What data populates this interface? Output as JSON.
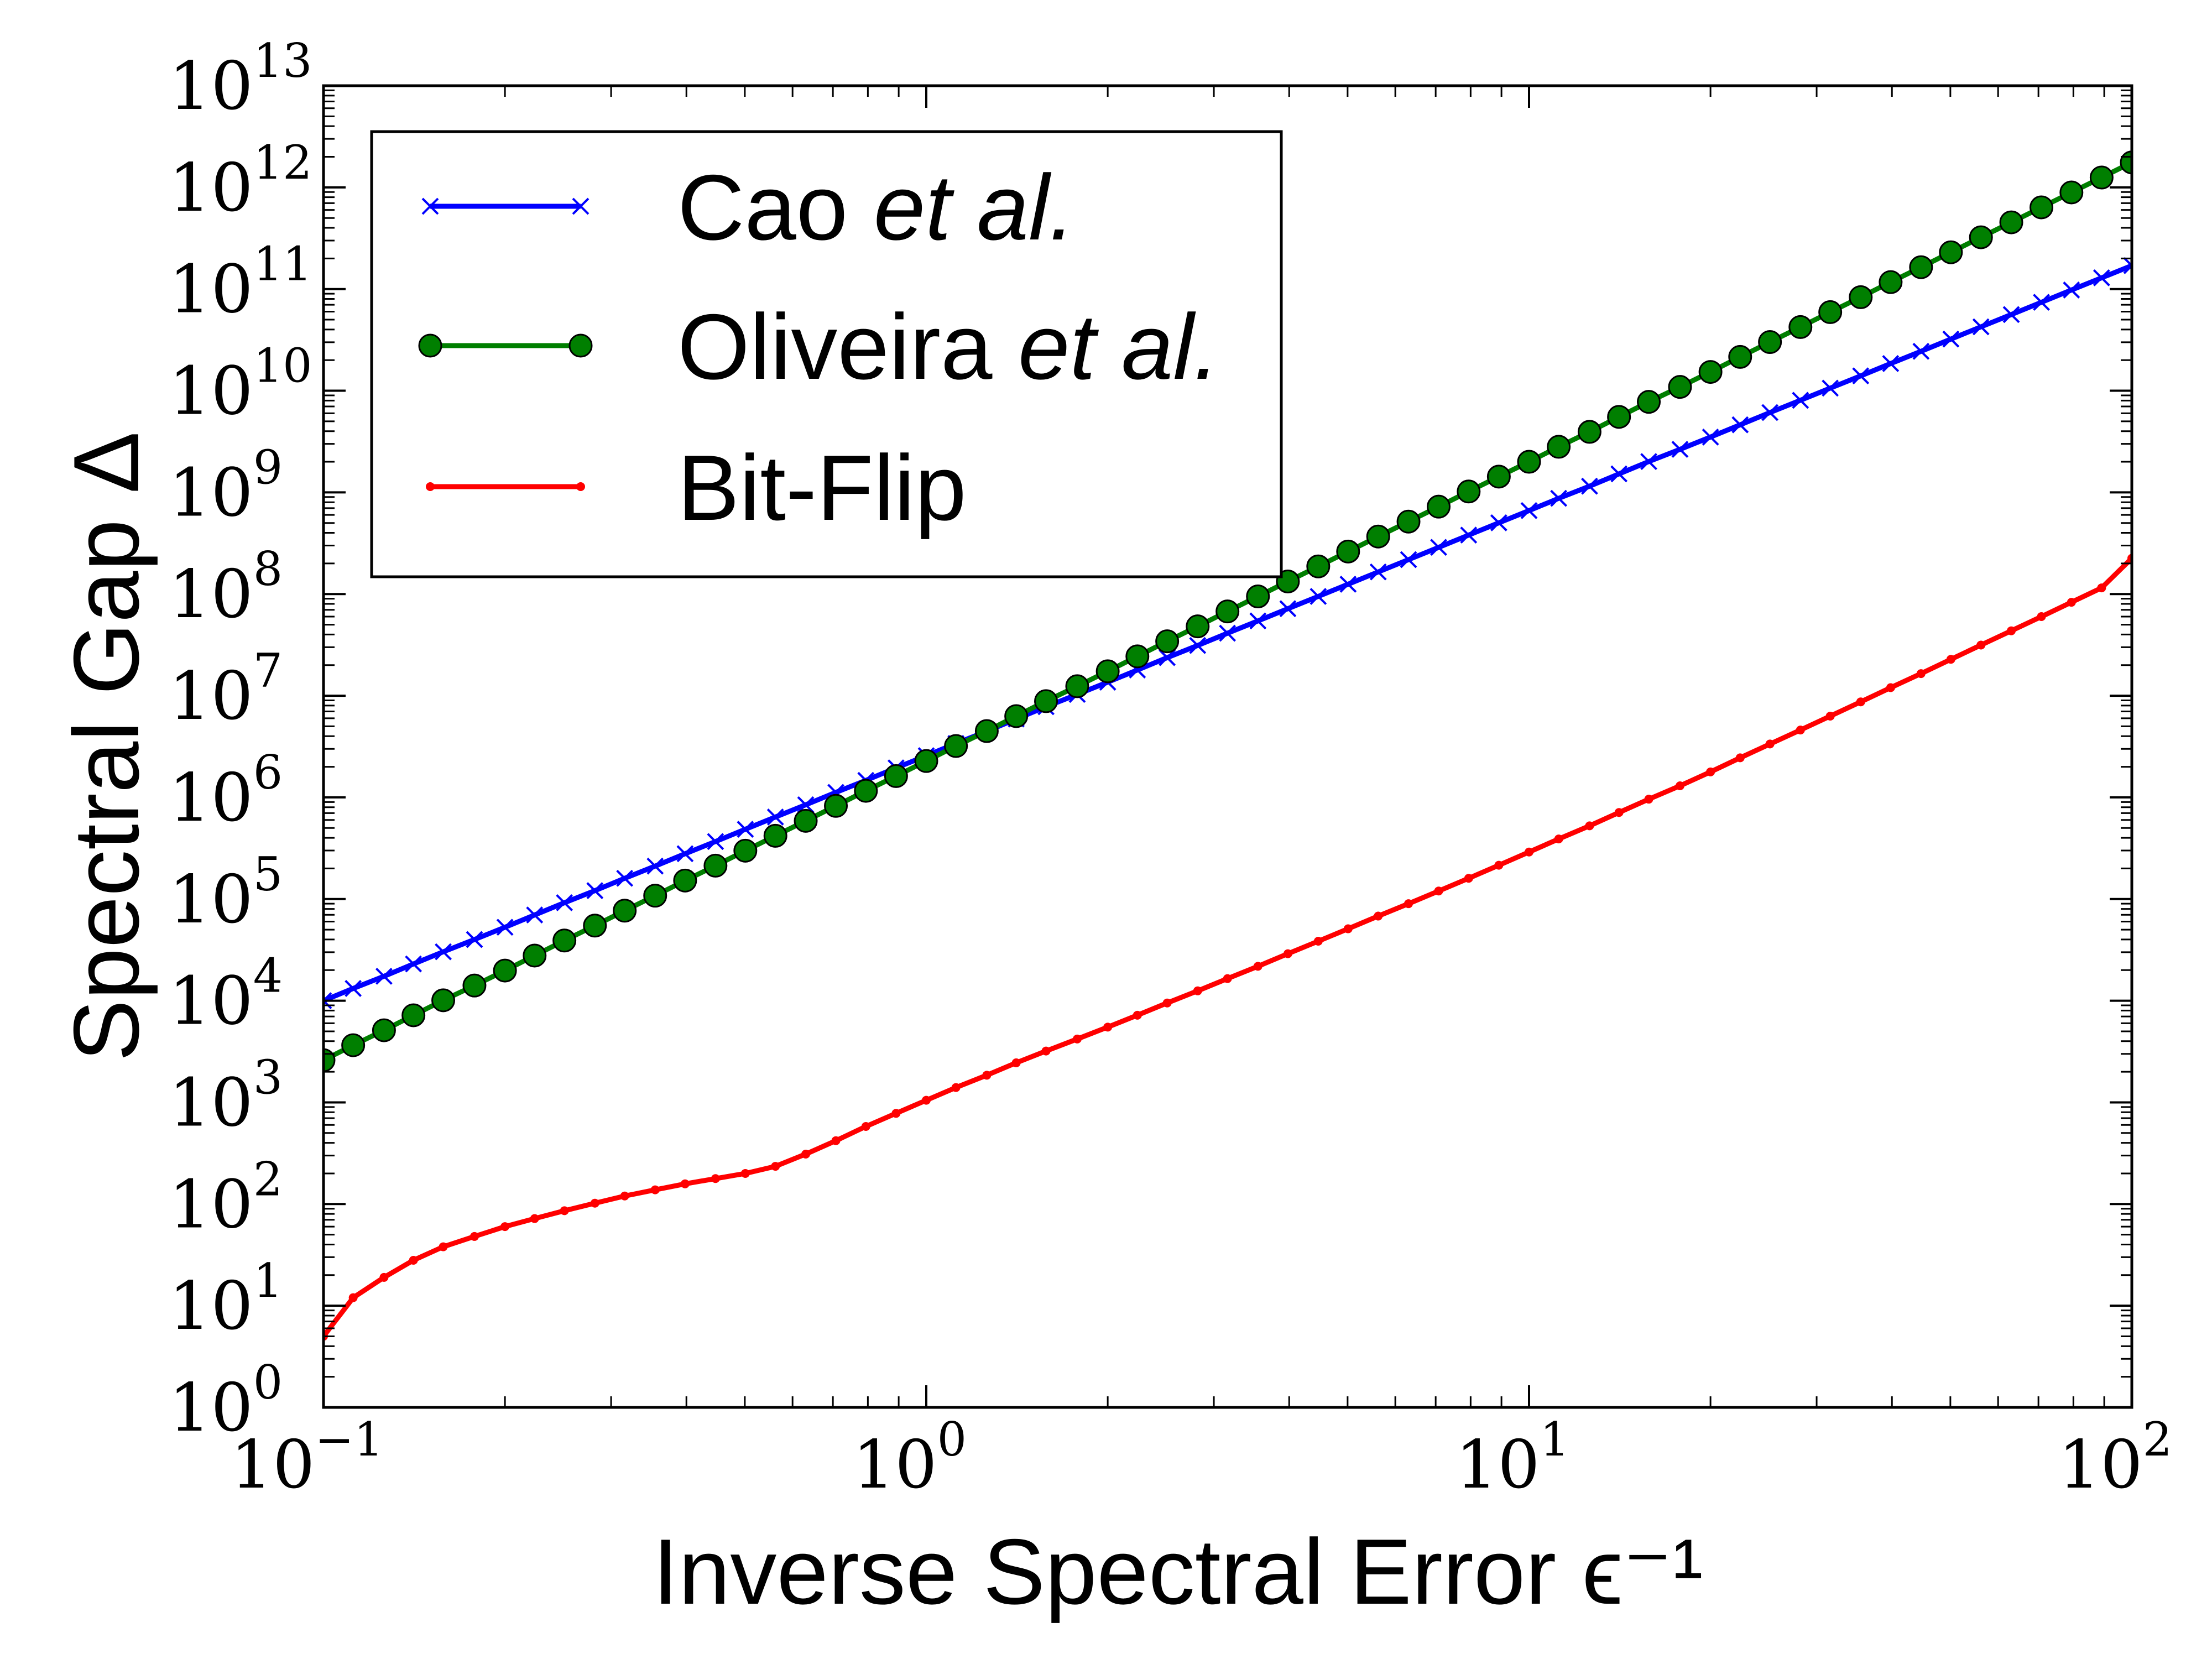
{
  "chart_data": {
    "type": "line",
    "xlabel": "Inverse Spectral Error ϵ⁻¹",
    "ylabel": "Spectral Gap Δ",
    "x_scale": "log",
    "y_scale": "log",
    "xlim": [
      0.1,
      100
    ],
    "ylim": [
      1,
      10000000000000
    ],
    "grid": false,
    "legend_position": "top-left",
    "x_ticks": [
      {
        "base": "10",
        "exp": "−1",
        "value": 0.1
      },
      {
        "base": "10",
        "exp": "0",
        "value": 1
      },
      {
        "base": "10",
        "exp": "1",
        "value": 10
      },
      {
        "base": "10",
        "exp": "2",
        "value": 100
      }
    ],
    "y_ticks": [
      {
        "base": "10",
        "exp": "0",
        "value": 1
      },
      {
        "base": "10",
        "exp": "1",
        "value": 10
      },
      {
        "base": "10",
        "exp": "2",
        "value": 100
      },
      {
        "base": "10",
        "exp": "3",
        "value": 1000
      },
      {
        "base": "10",
        "exp": "4",
        "value": 10000
      },
      {
        "base": "10",
        "exp": "5",
        "value": 100000
      },
      {
        "base": "10",
        "exp": "6",
        "value": 1000000
      },
      {
        "base": "10",
        "exp": "7",
        "value": 10000000
      },
      {
        "base": "10",
        "exp": "8",
        "value": 100000000
      },
      {
        "base": "10",
        "exp": "9",
        "value": 1000000000
      },
      {
        "base": "10",
        "exp": "10",
        "value": 10000000000
      },
      {
        "base": "10",
        "exp": "11",
        "value": 100000000000
      },
      {
        "base": "10",
        "exp": "12",
        "value": 1000000000000
      },
      {
        "base": "10",
        "exp": "13",
        "value": 10000000000000
      }
    ],
    "series": [
      {
        "name": "Cao et al.",
        "legend_plain": "Cao ",
        "legend_italic": "et al.",
        "color": "#0000ff",
        "marker": "x",
        "x": [
          0.1,
          0.112,
          0.126,
          0.141,
          0.158,
          0.178,
          0.2,
          0.224,
          0.251,
          0.282,
          0.316,
          0.355,
          0.398,
          0.447,
          0.501,
          0.562,
          0.631,
          0.708,
          0.794,
          0.891,
          1,
          1.12,
          1.26,
          1.41,
          1.58,
          1.78,
          2,
          2.24,
          2.51,
          2.82,
          3.16,
          3.55,
          3.98,
          4.47,
          5.01,
          5.62,
          6.31,
          7.08,
          7.94,
          8.91,
          10,
          11.2,
          12.6,
          14.1,
          15.8,
          17.8,
          20,
          22.4,
          25.1,
          28.2,
          31.6,
          35.5,
          39.8,
          44.7,
          50.1,
          56.2,
          63.1,
          70.8,
          79.4,
          89.1,
          100
        ],
        "y": [
          10000,
          13200,
          17400,
          23000,
          30300,
          40000,
          52800,
          69700,
          92000,
          121000,
          160000,
          211000,
          279000,
          368000,
          486000,
          641000,
          846000,
          1120000,
          1470000,
          1950000,
          2570000,
          3390000,
          4470000,
          5900000,
          7790000,
          10300000,
          13600000,
          17900000,
          23700000,
          31200000,
          41200000,
          54400000,
          71800000,
          94800000,
          125000000,
          165000000,
          218000000,
          288000000,
          380000000,
          502000000,
          662000000,
          874000000,
          1150000000,
          1520000000,
          2010000000,
          2650000000,
          3500000000,
          4620000000,
          6100000000,
          8050000000,
          10600000000,
          14000000000,
          18500000000,
          24400000000,
          32200000000,
          42500000000,
          56100000000,
          74100000000,
          97800000000,
          129000000000,
          170000000000
        ]
      },
      {
        "name": "Oliveira et al.",
        "legend_plain": "Oliveira ",
        "legend_italic": "et al.",
        "color": "#007f00",
        "marker": "o",
        "x": [
          0.1,
          0.112,
          0.126,
          0.141,
          0.158,
          0.178,
          0.2,
          0.224,
          0.251,
          0.282,
          0.316,
          0.355,
          0.398,
          0.447,
          0.501,
          0.562,
          0.631,
          0.708,
          0.794,
          0.891,
          1,
          1.12,
          1.26,
          1.41,
          1.58,
          1.78,
          2,
          2.24,
          2.51,
          2.82,
          3.16,
          3.55,
          3.98,
          4.47,
          5.01,
          5.62,
          6.31,
          7.08,
          7.94,
          8.91,
          10,
          11.2,
          12.6,
          14.1,
          15.8,
          17.8,
          20,
          22.4,
          25.1,
          28.2,
          31.6,
          35.5,
          39.8,
          44.7,
          50.1,
          56.2,
          63.1,
          70.8,
          79.4,
          89.1,
          100
        ],
        "y": [
          2600,
          3650,
          5120,
          7190,
          10100,
          14100,
          19800,
          27800,
          39100,
          54800,
          76900,
          108000,
          152000,
          213000,
          299000,
          419000,
          588000,
          825000,
          1160000,
          1620000,
          2280000,
          3200000,
          4490000,
          6300000,
          8840000,
          12400000,
          17400000,
          24400000,
          34300000,
          48100000,
          67500000,
          94800000,
          133000000,
          187000000,
          262000000,
          368000000,
          516000000,
          724000000,
          1020000000,
          1430000000,
          2000000000,
          2810000000,
          3940000000,
          5530000000,
          7770000000,
          10900000000,
          15300000000,
          21500000000,
          30100000000,
          42300000000,
          59300000000,
          83200000000,
          117000000000,
          164000000000,
          230000000000,
          323000000000,
          453000000000,
          636000000000,
          892000000000,
          1250000000000,
          1760000000000
        ]
      },
      {
        "name": "Bit-Flip",
        "legend_plain": "Bit-Flip",
        "legend_italic": "",
        "color": "#ff0000",
        "marker": ".",
        "x": [
          0.1,
          0.112,
          0.126,
          0.141,
          0.158,
          0.178,
          0.2,
          0.224,
          0.251,
          0.282,
          0.316,
          0.355,
          0.398,
          0.447,
          0.501,
          0.562,
          0.631,
          0.708,
          0.794,
          0.891,
          1,
          1.12,
          1.26,
          1.41,
          1.58,
          1.78,
          2,
          2.24,
          2.51,
          2.82,
          3.16,
          3.55,
          3.98,
          4.47,
          5.01,
          5.62,
          6.31,
          7.08,
          7.94,
          8.91,
          10,
          11.2,
          12.6,
          14.1,
          15.8,
          17.8,
          20,
          22.4,
          25.1,
          28.2,
          31.6,
          35.5,
          39.8,
          44.7,
          50.1,
          56.2,
          63.1,
          70.8,
          79.4,
          89.1,
          100
        ],
        "y": [
          5,
          12,
          19,
          28,
          38,
          48,
          60,
          72,
          86,
          102,
          120,
          138,
          158,
          178,
          200,
          235,
          310,
          420,
          580,
          780,
          1050,
          1400,
          1850,
          2450,
          3200,
          4200,
          5500,
          7200,
          9500,
          12500,
          16500,
          21800,
          29000,
          38500,
          51000,
          68000,
          90000,
          120000,
          160000,
          215000,
          290000,
          390000,
          525000,
          710000,
          960000,
          1300000,
          1780000,
          2450000,
          3350000,
          4600000,
          6300000,
          8700000,
          12000000,
          16500000,
          22800000,
          31500000,
          43500000,
          60000000,
          83000000,
          115000000,
          225000000
        ]
      }
    ]
  }
}
